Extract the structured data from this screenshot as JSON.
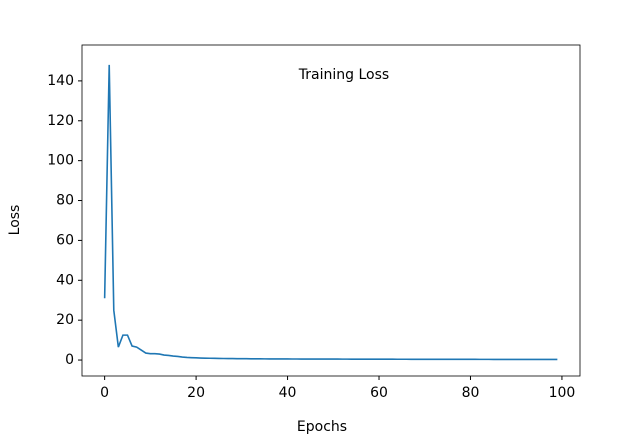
{
  "chart_data": {
    "type": "line",
    "title": "Training Loss",
    "x_label": "Epochs",
    "y_label": "Loss",
    "x": [
      0,
      1,
      2,
      3,
      4,
      5,
      6,
      7,
      8,
      9,
      10,
      11,
      12,
      13,
      14,
      15,
      16,
      17,
      18,
      19,
      20,
      21,
      22,
      23,
      24,
      25,
      26,
      27,
      28,
      29,
      30,
      31,
      32,
      33,
      34,
      35,
      36,
      37,
      38,
      39,
      40,
      41,
      42,
      43,
      44,
      45,
      46,
      47,
      48,
      49,
      50,
      51,
      52,
      53,
      54,
      55,
      56,
      57,
      58,
      59,
      60,
      61,
      62,
      63,
      64,
      65,
      66,
      67,
      68,
      69,
      70,
      71,
      72,
      73,
      74,
      75,
      76,
      77,
      78,
      79,
      80,
      81,
      82,
      83,
      84,
      85,
      86,
      87,
      88,
      89,
      90,
      91,
      92,
      93,
      94,
      95,
      96,
      97,
      98,
      99
    ],
    "values": [
      31,
      148,
      25,
      6.5,
      12.5,
      12.5,
      7,
      6.5,
      5,
      3.5,
      3.2,
      3.2,
      3,
      2.5,
      2.3,
      2,
      1.8,
      1.5,
      1.3,
      1.2,
      1.1,
      1.0,
      0.95,
      0.9,
      0.85,
      0.8,
      0.78,
      0.75,
      0.72,
      0.7,
      0.68,
      0.66,
      0.64,
      0.62,
      0.6,
      0.59,
      0.58,
      0.57,
      0.56,
      0.55,
      0.54,
      0.53,
      0.52,
      0.51,
      0.5,
      0.5,
      0.49,
      0.49,
      0.48,
      0.48,
      0.47,
      0.47,
      0.46,
      0.46,
      0.45,
      0.45,
      0.44,
      0.44,
      0.43,
      0.43,
      0.42,
      0.42,
      0.41,
      0.41,
      0.4,
      0.4,
      0.4,
      0.39,
      0.39,
      0.39,
      0.38,
      0.38,
      0.38,
      0.37,
      0.37,
      0.37,
      0.36,
      0.36,
      0.36,
      0.35,
      0.35,
      0.35,
      0.34,
      0.34,
      0.34,
      0.33,
      0.33,
      0.33,
      0.33,
      0.32,
      0.32,
      0.32,
      0.32,
      0.31,
      0.31,
      0.31,
      0.31,
      0.3,
      0.3,
      0.3
    ],
    "color": "#1f77b4",
    "xlim": [
      -4.95,
      103.95
    ],
    "xticks": [
      0,
      20,
      40,
      60,
      80,
      100
    ],
    "ylim": [
      -8,
      158
    ],
    "yticks": [
      0,
      20,
      40,
      60,
      80,
      100,
      120,
      140
    ],
    "grid": false
  }
}
